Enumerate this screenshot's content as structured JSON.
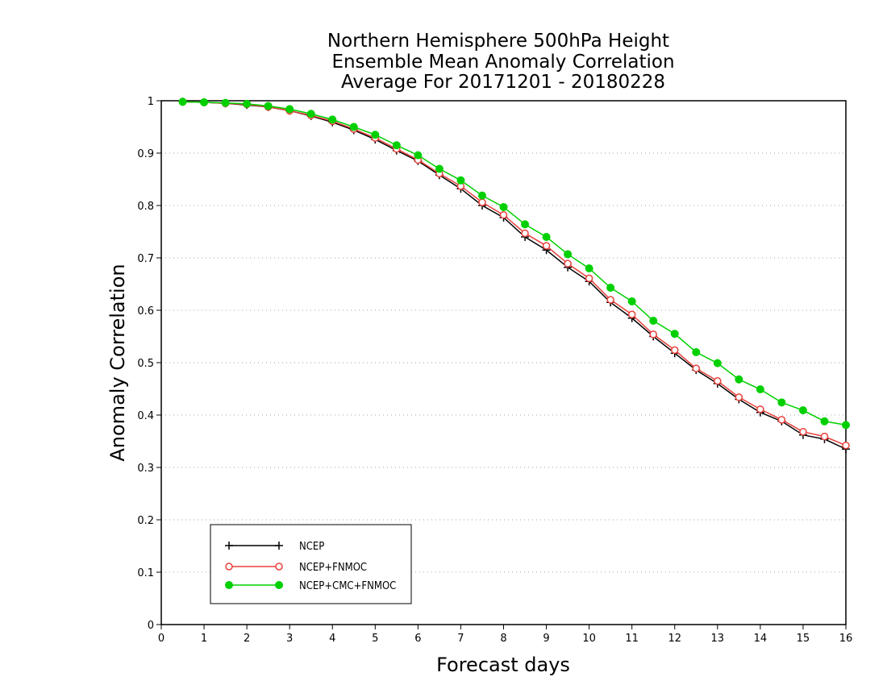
{
  "chart_data": {
    "type": "line",
    "title": [
      "Northern Hemisphere 500hPa Height",
      "Ensemble Mean Anomaly Correlation",
      "Average For 20171201 - 20180228"
    ],
    "xlabel": "Forecast days",
    "ylabel": "Anomaly Correlation",
    "xlim": [
      0,
      16
    ],
    "ylim": [
      0,
      1
    ],
    "xticks": [
      "0",
      "1",
      "2",
      "3",
      "4",
      "5",
      "6",
      "7",
      "8",
      "9",
      "10",
      "11",
      "12",
      "13",
      "14",
      "15",
      "16"
    ],
    "yticks": [
      "0",
      "0.1",
      "0.2",
      "0.3",
      "0.4",
      "0.5",
      "0.6",
      "0.7",
      "0.8",
      "0.9",
      "1"
    ],
    "grid": true,
    "legend_position": "bottom-left",
    "x": [
      0.5,
      1,
      1.5,
      2,
      2.5,
      3,
      3.5,
      4,
      4.5,
      5,
      5.5,
      6,
      6.5,
      7,
      7.5,
      8,
      8.5,
      9,
      9.5,
      10,
      10.5,
      11,
      11.5,
      12,
      12.5,
      13,
      13.5,
      14,
      14.5,
      15,
      15.5,
      16
    ],
    "series": [
      {
        "name": "NCEP",
        "color": "#000000",
        "marker": "plus",
        "values": [
          0.998,
          0.997,
          0.995,
          0.992,
          0.988,
          0.981,
          0.971,
          0.959,
          0.944,
          0.926,
          0.905,
          0.885,
          0.858,
          0.832,
          0.8,
          0.777,
          0.74,
          0.715,
          0.682,
          0.655,
          0.615,
          0.585,
          0.55,
          0.518,
          0.486,
          0.46,
          0.43,
          0.405,
          0.388,
          0.362,
          0.354,
          0.335
        ]
      },
      {
        "name": "NCEP+FNMOC",
        "color": "#e8413c",
        "marker": "open-circle",
        "values": [
          0.998,
          0.997,
          0.995,
          0.993,
          0.988,
          0.981,
          0.972,
          0.961,
          0.946,
          0.929,
          0.908,
          0.887,
          0.861,
          0.837,
          0.806,
          0.782,
          0.747,
          0.723,
          0.689,
          0.661,
          0.62,
          0.592,
          0.554,
          0.524,
          0.489,
          0.465,
          0.434,
          0.411,
          0.391,
          0.368,
          0.359,
          0.342
        ]
      },
      {
        "name": "NCEP+CMC+FNMOC",
        "color": "#00d000",
        "marker": "filled-circle",
        "values": [
          0.998,
          0.997,
          0.996,
          0.994,
          0.99,
          0.984,
          0.975,
          0.964,
          0.95,
          0.935,
          0.915,
          0.896,
          0.87,
          0.848,
          0.819,
          0.797,
          0.764,
          0.74,
          0.707,
          0.68,
          0.643,
          0.617,
          0.58,
          0.555,
          0.52,
          0.499,
          0.468,
          0.449,
          0.424,
          0.409,
          0.388,
          0.381
        ]
      }
    ]
  }
}
